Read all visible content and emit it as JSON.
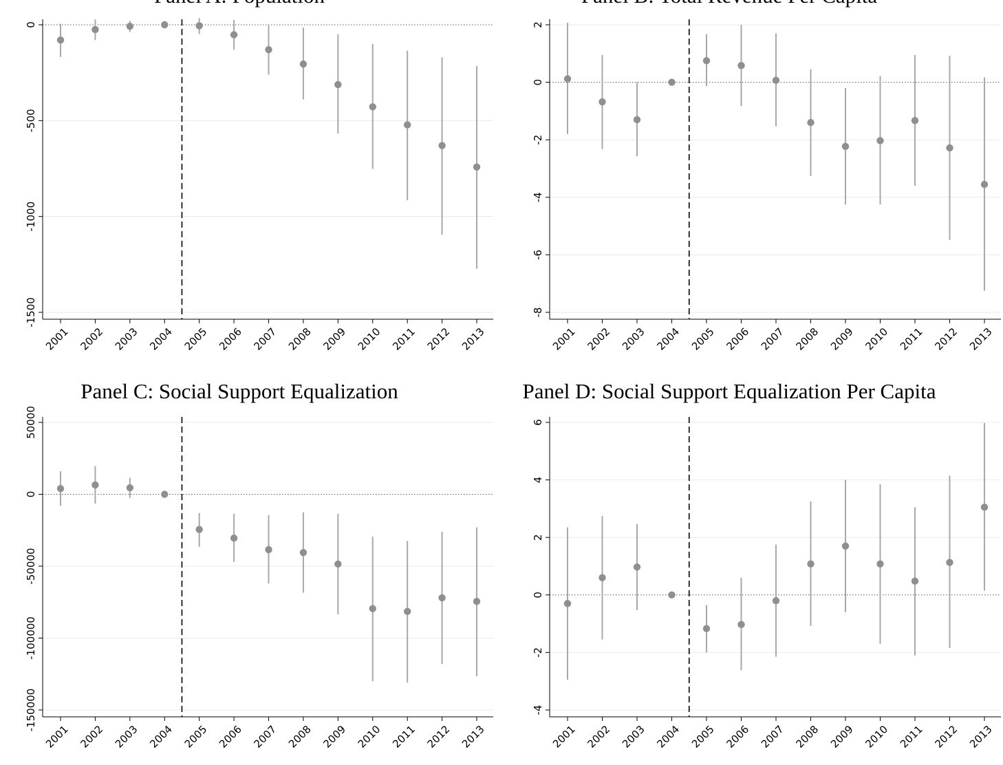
{
  "colors": {
    "point": "#8f8f8f",
    "ci": "#a8a8a8",
    "grid": "#eaeaea"
  },
  "chart_data": [
    {
      "type": "scatter",
      "title": "Panel A: Population",
      "xlabel": "",
      "ylabel": "",
      "categories": [
        "2001",
        "2002",
        "2003",
        "2004",
        "2005",
        "2006",
        "2007",
        "2008",
        "2009",
        "2010",
        "2011",
        "2012",
        "2013"
      ],
      "values": [
        -80,
        -25,
        -8,
        0,
        -5,
        -52,
        -130,
        -205,
        -312,
        -428,
        -522,
        -630,
        -742
      ],
      "ci_low": [
        -168,
        -80,
        -38,
        -5,
        -48,
        -130,
        -260,
        -390,
        -568,
        -752,
        -915,
        -1095,
        -1272
      ],
      "ci_high": [
        5,
        28,
        20,
        5,
        35,
        25,
        0,
        -15,
        -50,
        -100,
        -135,
        -170,
        -215
      ],
      "y_ticks": [
        0,
        -500,
        -1000,
        -1500
      ],
      "y_tick_labels": [
        "0",
        "-500",
        "-1000",
        "-1500"
      ],
      "ylim": [
        -1500,
        0
      ],
      "treatment_line": "between 2004 and 2005",
      "grid": true
    },
    {
      "type": "scatter",
      "title": "Panel B: Total Revenue Per Capita",
      "xlabel": "",
      "ylabel": "",
      "categories": [
        "2001",
        "2002",
        "2003",
        "2004",
        "2005",
        "2006",
        "2007",
        "2008",
        "2009",
        "2010",
        "2011",
        "2012",
        "2013"
      ],
      "values": [
        0.12,
        -0.68,
        -1.3,
        0,
        0.75,
        0.58,
        0.07,
        -1.4,
        -2.23,
        -2.03,
        -1.33,
        -2.28,
        -3.55
      ],
      "ci_low": [
        -1.8,
        -2.32,
        -2.57,
        -0.05,
        -0.14,
        -0.83,
        -1.53,
        -3.26,
        -4.25,
        -4.25,
        -3.6,
        -5.48,
        -7.25
      ],
      "ci_high": [
        2.07,
        0.95,
        0.0,
        0.05,
        1.67,
        2.0,
        1.7,
        0.45,
        -0.2,
        0.22,
        0.95,
        0.92,
        0.17
      ],
      "y_ticks": [
        2,
        0,
        -2,
        -4,
        -6,
        -8
      ],
      "y_tick_labels": [
        "2",
        "0",
        "-2",
        "-4",
        "-6",
        "-8"
      ],
      "ylim": [
        -8,
        2
      ],
      "treatment_line": "between 2004 and 2005",
      "grid": true
    },
    {
      "type": "scatter",
      "title": "Panel C: Social Support Equalization",
      "xlabel": "",
      "ylabel": "",
      "categories": [
        "2001",
        "2002",
        "2003",
        "2004",
        "2005",
        "2006",
        "2007",
        "2008",
        "2009",
        "2010",
        "2011",
        "2012",
        "2013"
      ],
      "values": [
        4000,
        6500,
        4500,
        0,
        -24500,
        -30500,
        -38500,
        -40500,
        -48500,
        -79500,
        -81500,
        -72000,
        -74500
      ],
      "ci_low": [
        -8000,
        -6500,
        -2500,
        -500,
        -36500,
        -47000,
        -62000,
        -68500,
        -83500,
        -130000,
        -131000,
        -118000,
        -126500
      ],
      "ci_high": [
        16000,
        19500,
        11500,
        500,
        -13000,
        -13500,
        -14500,
        -12500,
        -13500,
        -29500,
        -32500,
        -26000,
        -23000
      ],
      "y_ticks": [
        50000,
        0,
        -50000,
        -100000,
        -150000
      ],
      "y_tick_labels": [
        "50000",
        "0",
        "-50000",
        "-100000",
        "-150000"
      ],
      "ylim": [
        -150000,
        50000
      ],
      "treatment_line": "between 2004 and 2005",
      "grid": true
    },
    {
      "type": "scatter",
      "title": "Panel D: Social Support Equalization Per Capita",
      "xlabel": "",
      "ylabel": "",
      "categories": [
        "2001",
        "2002",
        "2003",
        "2004",
        "2005",
        "2006",
        "2007",
        "2008",
        "2009",
        "2010",
        "2011",
        "2012",
        "2013"
      ],
      "values": [
        -0.3,
        0.6,
        0.97,
        0,
        -1.17,
        -1.03,
        -0.2,
        1.08,
        1.7,
        1.08,
        0.48,
        1.13,
        3.05
      ],
      "ci_low": [
        -2.95,
        -1.55,
        -0.53,
        -0.04,
        -2.0,
        -2.62,
        -2.15,
        -1.08,
        -0.6,
        -1.7,
        -2.1,
        -1.85,
        0.15
      ],
      "ci_high": [
        2.35,
        2.75,
        2.47,
        0.04,
        -0.35,
        0.6,
        1.75,
        3.25,
        4.0,
        3.85,
        3.05,
        4.15,
        5.98
      ],
      "y_ticks": [
        6,
        4,
        2,
        0,
        -2,
        -4
      ],
      "y_tick_labels": [
        "6",
        "4",
        "2",
        "0",
        "-2",
        "-4"
      ],
      "ylim": [
        -4,
        6
      ],
      "treatment_line": "between 2004 and 2005",
      "grid": true
    }
  ]
}
